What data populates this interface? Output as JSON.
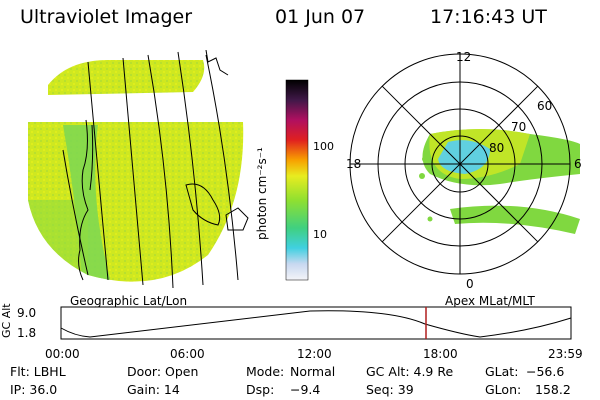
{
  "header": {
    "instrument": "Ultraviolet Imager",
    "date": "01 Jun 07",
    "time": "17:16:43 UT"
  },
  "geo_panel": {
    "label": "Geographic Lat/Lon"
  },
  "polar_panel": {
    "label": "Apex MLat/MLT",
    "mlt_labels": [
      "12",
      "18",
      "6",
      "0"
    ],
    "mlat_labels": [
      "60",
      "70",
      "80"
    ]
  },
  "colorbar": {
    "unit_label": "photon cm⁻²s⁻¹",
    "ticks": [
      "100",
      "10"
    ],
    "scale": "log"
  },
  "altitude_plot": {
    "ylabel": "GC Alt",
    "y_ticks": [
      "9.0",
      "1.8"
    ],
    "x_ticks": [
      "00:00",
      "06:00",
      "12:00",
      "18:00",
      "23:59"
    ],
    "marker_time": "17:16"
  },
  "info": {
    "flt": "Flt: LBHL",
    "door": "Door: Open",
    "mode_label": "Mode:",
    "mode_value": "Normal",
    "gc_alt": "GC Alt: 4.9 Re",
    "glat_label": "GLat:",
    "glat_value": "−56.6",
    "ip": "IP: 36.0",
    "gain": "Gain: 14",
    "dsp_label": "Dsp:",
    "dsp_value": "−9.4",
    "seq": "Seq: 39",
    "glon_label": "GLon:",
    "glon_value": "158.2"
  },
  "colors": {
    "image_fill": "#cfe820",
    "image_green": "#7fd850",
    "marker": "#b01e1e"
  }
}
